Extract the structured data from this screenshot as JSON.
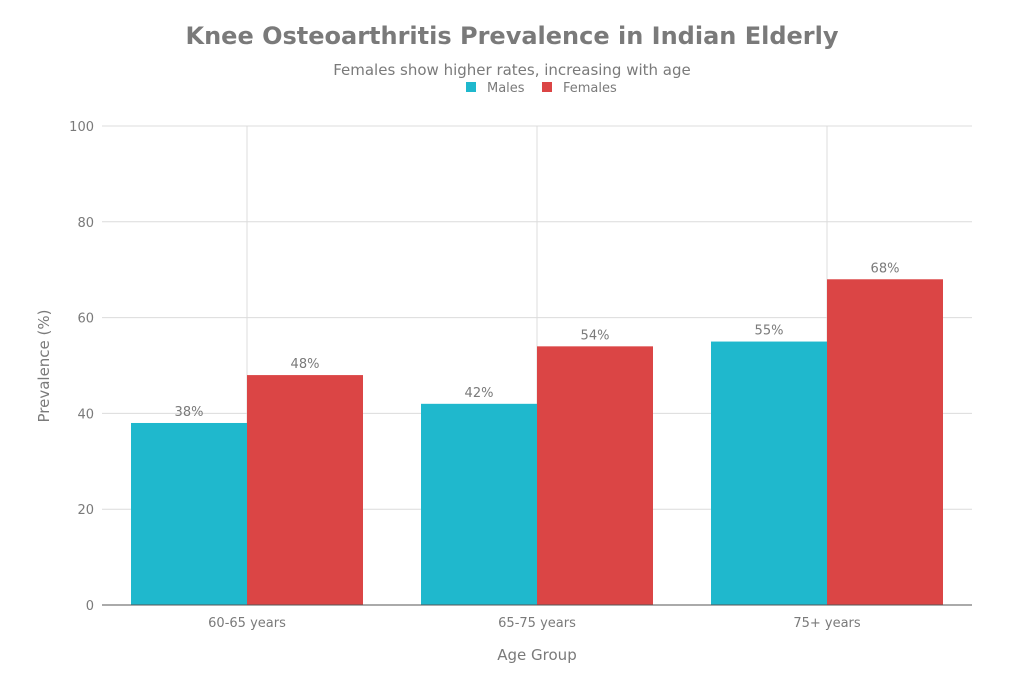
{
  "chart_data": {
    "type": "bar",
    "title": "Knee Osteoarthritis Prevalence in Indian Elderly",
    "subtitle": "Females show higher rates, increasing with age",
    "xlabel": "Age Group",
    "ylabel": "Prevalence (%)",
    "categories": [
      "60-65 years",
      "65-75 years",
      "75+ years"
    ],
    "series": [
      {
        "name": "Males",
        "color": "#1FB8CD",
        "values": [
          38,
          42,
          55
        ],
        "labels": [
          "38%",
          "42%",
          "55%"
        ]
      },
      {
        "name": "Females",
        "color": "#DB4545",
        "values": [
          48,
          54,
          68
        ],
        "labels": [
          "48%",
          "54%",
          "68%"
        ]
      }
    ],
    "ylim": [
      0,
      100
    ],
    "yticks": [
      0,
      20,
      40,
      60,
      80,
      100
    ],
    "grid": true,
    "legend": "top-center"
  }
}
